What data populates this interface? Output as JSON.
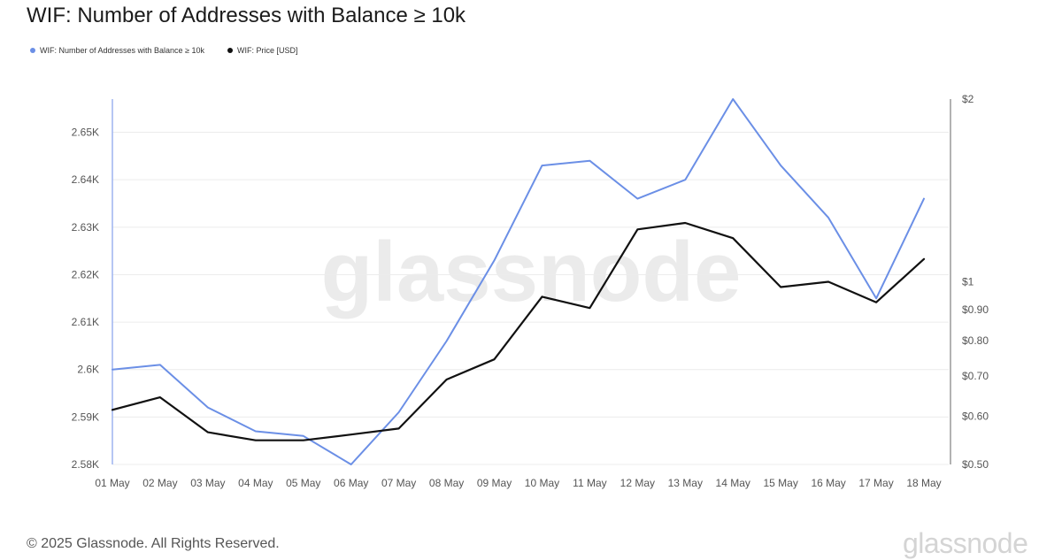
{
  "title": "WIF: Number of Addresses with Balance ≥ 10k",
  "legend": [
    {
      "label": "WIF: Number of Addresses with Balance ≥ 10k",
      "color": "#6b8fe6"
    },
    {
      "label": "WIF: Price [USD]",
      "color": "#111111"
    }
  ],
  "footer": "© 2025 Glassnode. All Rights Reserved.",
  "brand": "glassnode",
  "watermark": "glassnode",
  "chart_data": {
    "type": "line",
    "title": "WIF: Number of Addresses with Balance ≥ 10k",
    "categories": [
      "01 May",
      "02 May",
      "03 May",
      "04 May",
      "05 May",
      "06 May",
      "07 May",
      "08 May",
      "09 May",
      "10 May",
      "11 May",
      "12 May",
      "13 May",
      "14 May",
      "15 May",
      "16 May",
      "17 May",
      "18 May"
    ],
    "grid": true,
    "legend_position": "top-left",
    "left_axis": {
      "ylim": [
        2580,
        2657
      ],
      "ticks": [
        2580,
        2590,
        2600,
        2610,
        2620,
        2630,
        2640,
        2650
      ],
      "tick_labels": [
        "2.58K",
        "2.59K",
        "2.6K",
        "2.61K",
        "2.62K",
        "2.63K",
        "2.64K",
        "2.65K"
      ]
    },
    "right_axis": {
      "scale": "log",
      "ylim": [
        0.5,
        2
      ],
      "ticks": [
        0.5,
        0.6,
        0.7,
        0.8,
        0.9,
        1,
        2
      ],
      "tick_labels": [
        "$0.50",
        "$0.60",
        "$0.70",
        "$0.80",
        "$0.90",
        "$1",
        "$2"
      ]
    },
    "series": [
      {
        "name": "WIF: Number of Addresses with Balance ≥ 10k",
        "axis": "left",
        "color": "#6b8fe6",
        "values": [
          2600,
          2601,
          2592,
          2587,
          2586,
          2580,
          2591,
          2606,
          2623,
          2643,
          2644,
          2636,
          2640,
          2657,
          2643,
          2632,
          2615,
          2636
        ]
      },
      {
        "name": "WIF: Price [USD]",
        "axis": "right",
        "scale": "log",
        "color": "#111111",
        "values": [
          0.615,
          0.645,
          0.565,
          0.548,
          0.548,
          0.56,
          0.573,
          0.69,
          0.745,
          0.945,
          0.905,
          1.22,
          1.25,
          1.18,
          0.98,
          1.0,
          0.925,
          1.09
        ]
      }
    ]
  }
}
